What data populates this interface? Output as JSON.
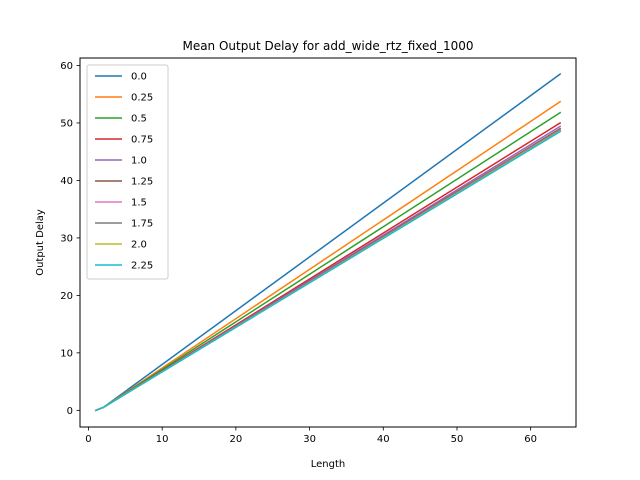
{
  "chart_data": {
    "type": "line",
    "title": "Mean Output Delay for add_wide_rtz_fixed_1000",
    "xlabel": "Length",
    "ylabel": "Output Delay",
    "xlim": [
      -1.15,
      66.15
    ],
    "ylim": [
      -2.9,
      61.3
    ],
    "xticks": [
      0,
      10,
      20,
      30,
      40,
      50,
      60
    ],
    "yticks": [
      0,
      10,
      20,
      30,
      40,
      50,
      60
    ],
    "grid": false,
    "legend_position": "top-left",
    "x": [
      1,
      2,
      64
    ],
    "series": [
      {
        "name": "0.0",
        "color": "#1f77b4",
        "values": [
          0.0,
          0.5,
          58.5
        ]
      },
      {
        "name": "0.25",
        "color": "#ff7f0e",
        "values": [
          0.0,
          0.5,
          53.7
        ]
      },
      {
        "name": "0.5",
        "color": "#2ca02c",
        "values": [
          0.0,
          0.5,
          51.8
        ]
      },
      {
        "name": "0.75",
        "color": "#d62728",
        "values": [
          0.0,
          0.5,
          50.0
        ]
      },
      {
        "name": "1.0",
        "color": "#9467bd",
        "values": [
          0.0,
          0.5,
          49.4
        ]
      },
      {
        "name": "1.25",
        "color": "#8c564b",
        "values": [
          0.0,
          0.5,
          49.0
        ]
      },
      {
        "name": "1.5",
        "color": "#e377c2",
        "values": [
          0.0,
          0.5,
          48.8
        ]
      },
      {
        "name": "1.75",
        "color": "#7f7f7f",
        "values": [
          0.0,
          0.5,
          48.7
        ]
      },
      {
        "name": "2.0",
        "color": "#bcbd22",
        "values": [
          0.0,
          0.5,
          48.6
        ]
      },
      {
        "name": "2.25",
        "color": "#17becf",
        "values": [
          0.0,
          0.5,
          48.5
        ]
      }
    ]
  }
}
